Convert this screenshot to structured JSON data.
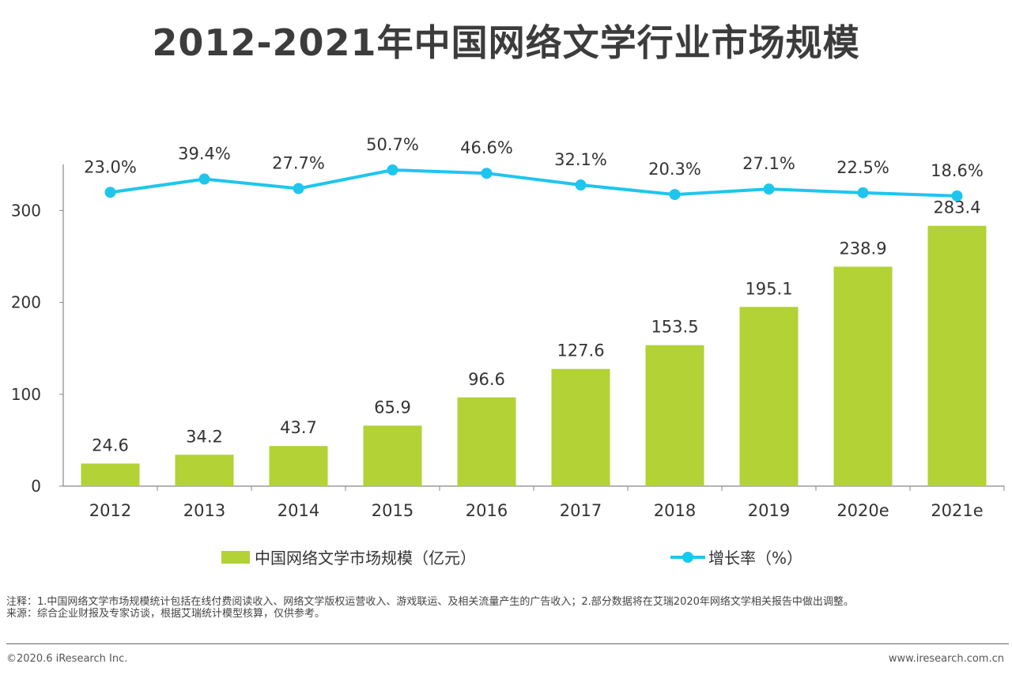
{
  "page": {
    "title": "2012-2021年中国网络文学行业市场规模",
    "note": "注释：1.中国网络文学市场规模统计包括在线付费阅读收入、网络文学版权运营收入、游戏联运、及相关流量产生的广告收入；2.部分数据将在艾瑞2020年网络文学相关报告中做出调整。",
    "source": "来源：综合企业财报及专家访谈，根据艾瑞统计模型核算，仅供参考。",
    "copyright": "©2020.6 iResearch Inc.",
    "website": "www.iresearch.com.cn"
  },
  "chart_data": {
    "type": "bar",
    "title": "2012-2021年中国网络文学行业市场规模",
    "categories": [
      "2012",
      "2013",
      "2014",
      "2015",
      "2016",
      "2017",
      "2018",
      "2019",
      "2020e",
      "2021e"
    ],
    "series": [
      {
        "name": "中国网络文学市场规模（亿元）",
        "type": "bar",
        "values": [
          24.6,
          34.2,
          43.7,
          65.9,
          96.6,
          127.6,
          153.5,
          195.1,
          238.9,
          283.4
        ],
        "labels": [
          "24.6",
          "34.2",
          "43.7",
          "65.9",
          "96.6",
          "127.6",
          "153.5",
          "195.1",
          "238.9",
          "283.4"
        ],
        "color": "#b2d235"
      },
      {
        "name": "增长率（%）",
        "type": "line",
        "values": [
          23.0,
          39.4,
          27.7,
          50.7,
          46.6,
          32.1,
          20.3,
          27.1,
          22.5,
          18.6
        ],
        "labels": [
          "23.0%",
          "39.4%",
          "27.7%",
          "50.7%",
          "46.6%",
          "32.1%",
          "20.3%",
          "27.1%",
          "22.5%",
          "18.6%"
        ],
        "color": "#1ec6ee"
      }
    ],
    "y_ticks": [
      "0",
      "100",
      "200",
      "300"
    ],
    "ylim": [
      0,
      350
    ],
    "legend_position": "bottom",
    "grid": false
  }
}
